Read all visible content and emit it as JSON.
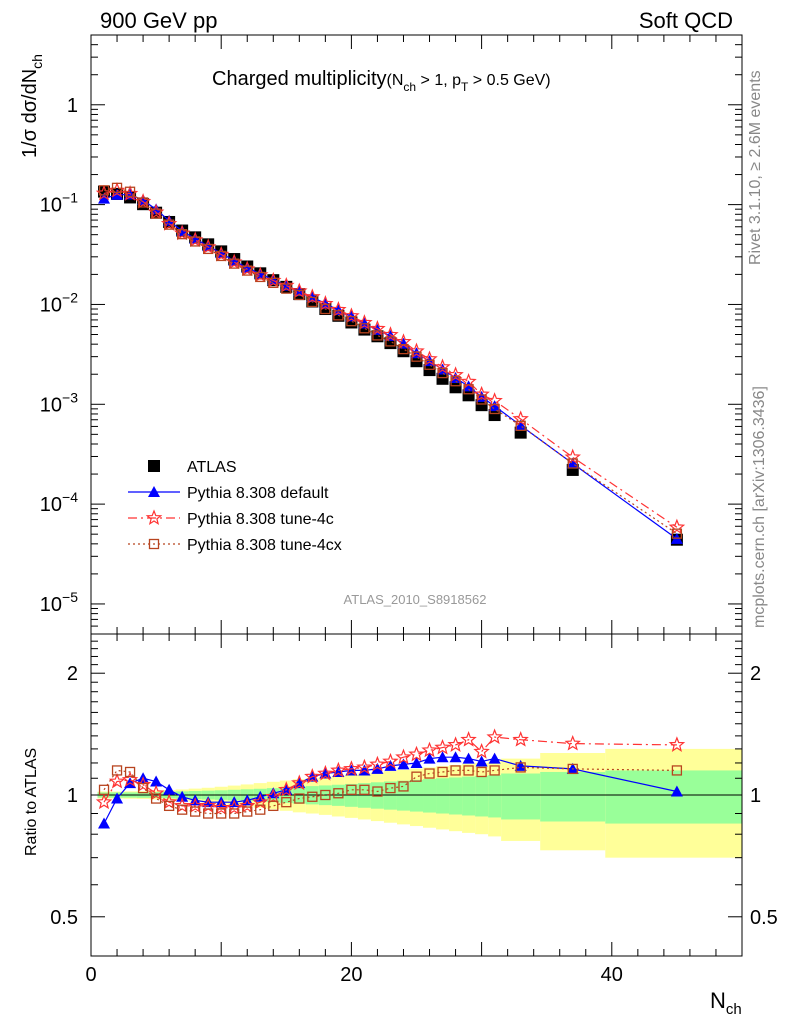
{
  "header": {
    "left": "900 GeV pp",
    "right": "Soft QCD"
  },
  "plot_title": {
    "main": "Charged multiplicity",
    "cuts_prefix": "(N",
    "cuts_sub1": "ch",
    "cuts_mid": " > 1, p",
    "cuts_sub2": "T",
    "cuts_suffix": " > 0.5 GeV)"
  },
  "watermark": "ATLAS_2010_S8918562",
  "side_labels": {
    "rivet": "Rivet 3.1.10, ≥ 2.6M events",
    "source": "mcplots.cern.ch [arXiv:1306.3436]"
  },
  "axes": {
    "ylabel_main_prefix": "1/σ dσ/dN",
    "ylabel_main_sub": "ch",
    "ylabel_ratio": "Ratio to ATLAS",
    "xlabel_base": "N",
    "xlabel_sub": "ch"
  },
  "chart_data": {
    "type": "scatter",
    "x_range": [
      0,
      50
    ],
    "main_panel": {
      "y_scale": "log",
      "y_range": [
        5e-06,
        5
      ],
      "y_ticks": [
        {
          "value": 1e-05,
          "base": "10",
          "exp": "−5"
        },
        {
          "value": 0.0001,
          "base": "10",
          "exp": "−4"
        },
        {
          "value": 0.001,
          "base": "10",
          "exp": "−3"
        },
        {
          "value": 0.01,
          "base": "10",
          "exp": "−2"
        },
        {
          "value": 0.1,
          "base": "10",
          "exp": "−1"
        },
        {
          "value": 1,
          "base": "1",
          "exp": ""
        }
      ]
    },
    "ratio_panel": {
      "y_scale": "log",
      "y_range": [
        0.4,
        2.5
      ],
      "y_ticks": [
        {
          "value": 0.5,
          "label": "0.5"
        },
        {
          "value": 1,
          "label": "1"
        },
        {
          "value": 2,
          "label": "2"
        }
      ]
    },
    "x_ticks": [
      {
        "value": 0,
        "label": "0"
      },
      {
        "value": 20,
        "label": "20"
      },
      {
        "value": 40,
        "label": "40"
      }
    ],
    "legend_position": "lower-left",
    "series": [
      {
        "name": "ATLAS",
        "color": "#000000",
        "marker": "square-filled",
        "x": [
          1,
          2,
          3,
          4,
          5,
          6,
          7,
          8,
          9,
          10,
          11,
          12,
          13,
          14,
          15,
          16,
          17,
          18,
          19,
          20,
          21,
          22,
          23,
          24,
          25,
          26,
          27,
          28,
          29,
          30,
          31,
          33,
          37,
          45
        ],
        "y": [
          0.135,
          0.128,
          0.118,
          0.101,
          0.083,
          0.067,
          0.055,
          0.047,
          0.04,
          0.034,
          0.0285,
          0.024,
          0.0205,
          0.0175,
          0.015,
          0.0127,
          0.0107,
          0.009,
          0.0077,
          0.0066,
          0.0056,
          0.0048,
          0.0041,
          0.0034,
          0.0027,
          0.0022,
          0.0018,
          0.00148,
          0.00123,
          0.00098,
          0.00078,
          0.00052,
          0.00022,
          4.4e-05
        ]
      },
      {
        "name": "Pythia 8.308 default",
        "color": "#0000ff",
        "marker": "triangle-filled",
        "x": [
          1,
          2,
          3,
          4,
          5,
          6,
          7,
          8,
          9,
          10,
          11,
          12,
          13,
          14,
          15,
          16,
          17,
          18,
          19,
          20,
          21,
          22,
          23,
          24,
          25,
          26,
          27,
          28,
          29,
          30,
          31,
          33,
          37,
          45
        ],
        "ratio": [
          0.85,
          0.98,
          1.07,
          1.1,
          1.08,
          1.03,
          0.99,
          0.97,
          0.96,
          0.96,
          0.96,
          0.97,
          0.99,
          1.01,
          1.03,
          1.07,
          1.11,
          1.13,
          1.14,
          1.15,
          1.15,
          1.16,
          1.18,
          1.19,
          1.2,
          1.23,
          1.24,
          1.24,
          1.23,
          1.21,
          1.23,
          1.18,
          1.16,
          1.02
        ]
      },
      {
        "name": "Pythia 8.308 tune-4c",
        "color": "#ff3333",
        "marker": "star-open",
        "x": [
          1,
          2,
          3,
          4,
          5,
          6,
          7,
          8,
          9,
          10,
          11,
          12,
          13,
          14,
          15,
          16,
          17,
          18,
          19,
          20,
          21,
          22,
          23,
          24,
          25,
          26,
          27,
          28,
          29,
          30,
          31,
          33,
          37,
          45
        ],
        "ratio": [
          0.96,
          1.08,
          1.09,
          1.06,
          1.01,
          0.96,
          0.94,
          0.94,
          0.94,
          0.93,
          0.93,
          0.94,
          0.96,
          0.99,
          1.03,
          1.07,
          1.11,
          1.13,
          1.15,
          1.16,
          1.17,
          1.19,
          1.21,
          1.24,
          1.26,
          1.29,
          1.31,
          1.33,
          1.37,
          1.28,
          1.39,
          1.37,
          1.34,
          1.33
        ]
      },
      {
        "name": "Pythia 8.308 tune-4cx",
        "color": "#b8441f",
        "marker": "square-open",
        "x": [
          1,
          2,
          3,
          4,
          5,
          6,
          7,
          8,
          9,
          10,
          11,
          12,
          13,
          14,
          15,
          16,
          17,
          18,
          19,
          20,
          21,
          22,
          23,
          24,
          25,
          26,
          27,
          28,
          29,
          30,
          31,
          33,
          37,
          45
        ],
        "ratio": [
          1.03,
          1.15,
          1.14,
          1.04,
          0.98,
          0.94,
          0.92,
          0.91,
          0.9,
          0.9,
          0.9,
          0.91,
          0.92,
          0.94,
          0.96,
          0.98,
          0.99,
          1.0,
          1.01,
          1.03,
          1.03,
          1.02,
          1.04,
          1.05,
          1.11,
          1.13,
          1.14,
          1.15,
          1.15,
          1.14,
          1.15,
          1.17,
          1.16,
          1.15
        ]
      }
    ],
    "uncertainty_bands": {
      "x_edges": [
        0.5,
        1.5,
        2.5,
        3.5,
        4.5,
        5.5,
        6.5,
        7.5,
        8.5,
        9.5,
        10.5,
        11.5,
        12.5,
        13.5,
        14.5,
        15.5,
        16.5,
        17.5,
        18.5,
        19.5,
        20.5,
        21.5,
        22.5,
        23.5,
        24.5,
        25.5,
        26.5,
        27.5,
        28.5,
        29.5,
        30.5,
        31.5,
        34.5,
        39.5,
        50
      ],
      "inner_halfwidth": [
        0.015,
        0.015,
        0.015,
        0.016,
        0.017,
        0.019,
        0.021,
        0.023,
        0.025,
        0.027,
        0.03,
        0.033,
        0.036,
        0.04,
        0.044,
        0.048,
        0.052,
        0.056,
        0.06,
        0.065,
        0.07,
        0.075,
        0.08,
        0.085,
        0.09,
        0.095,
        0.1,
        0.105,
        0.11,
        0.115,
        0.12,
        0.13,
        0.14,
        0.15
      ],
      "outer_halfwidth": [
        0.02,
        0.02,
        0.021,
        0.022,
        0.025,
        0.028,
        0.032,
        0.037,
        0.042,
        0.048,
        0.055,
        0.062,
        0.07,
        0.078,
        0.086,
        0.094,
        0.1,
        0.107,
        0.115,
        0.122,
        0.13,
        0.138,
        0.146,
        0.154,
        0.162,
        0.17,
        0.178,
        0.186,
        0.194,
        0.2,
        0.21,
        0.23,
        0.27,
        0.3
      ],
      "inner_color": "#99ff99",
      "outer_color": "#ffff99"
    }
  }
}
